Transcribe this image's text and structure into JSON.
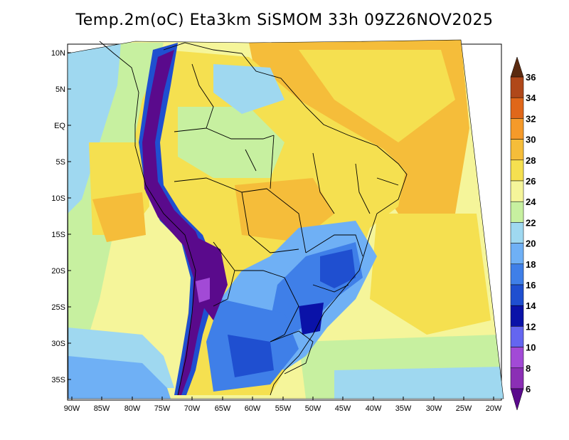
{
  "title": "Temp.2m(oC) Eta3km SiSMOM 33h 09Z26NOV2025",
  "lat_labels": [
    "10N",
    "5N",
    "EQ",
    "5S",
    "10S",
    "15S",
    "20S",
    "25S",
    "30S",
    "35S"
  ],
  "lon_labels": [
    "90W",
    "85W",
    "80W",
    "75W",
    "70W",
    "65W",
    "60W",
    "55W",
    "50W",
    "45W",
    "40W",
    "35W",
    "30W",
    "25W",
    "20W"
  ],
  "colorbar": {
    "levels": [
      "6",
      "8",
      "10",
      "12",
      "14",
      "16",
      "18",
      "20",
      "22",
      "24",
      "26",
      "28",
      "30",
      "32",
      "34",
      "36"
    ],
    "colors": [
      "#5a0a8c",
      "#8b2fb5",
      "#a24ad6",
      "#6466f0",
      "#0a12a8",
      "#1f4fd0",
      "#3f7fe8",
      "#6fb0f5",
      "#9fd8f0",
      "#c7f0a0",
      "#f5f59a",
      "#f5e050",
      "#f5bd3a",
      "#f59a2a",
      "#e0671a",
      "#b0481a",
      "#7a2a10"
    ],
    "under_color": "#5a0a8c",
    "over_color": "#5a2a10"
  }
}
